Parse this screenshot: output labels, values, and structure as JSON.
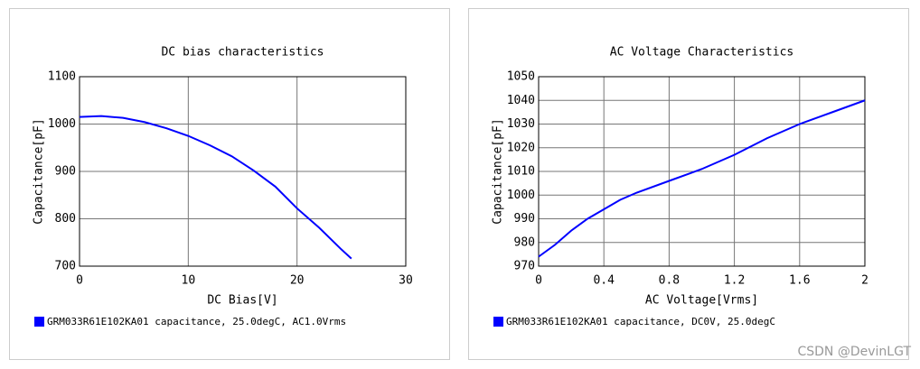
{
  "chart_data": [
    {
      "type": "line",
      "title": "DC bias characteristics",
      "x_label": "DC Bias[V]",
      "y_label": "Capacitance[pF]",
      "x": [
        0,
        2,
        4,
        6,
        8,
        10,
        12,
        14,
        16,
        18,
        20,
        22,
        24,
        25
      ],
      "series": [
        {
          "name": "GRM033R61E102KA01 capacitance, 25.0degC, AC1.0Vrms",
          "color": "#0000ff",
          "values": [
            1015,
            1017,
            1013,
            1004,
            991,
            975,
            955,
            932,
            902,
            868,
            822,
            782,
            737,
            716
          ]
        }
      ],
      "xlim": [
        0,
        30
      ],
      "xticks": [
        0,
        10,
        20,
        30
      ],
      "ylim": [
        700,
        1100
      ],
      "yticks": [
        700,
        800,
        900,
        1000,
        1100
      ],
      "grid": true
    },
    {
      "type": "line",
      "title": "AC Voltage Characteristics",
      "x_label": "AC Voltage[Vrms]",
      "y_label": "Capacitance[pF]",
      "x": [
        0,
        0.1,
        0.2,
        0.3,
        0.4,
        0.5,
        0.6,
        0.8,
        1.0,
        1.2,
        1.4,
        1.6,
        1.8,
        2.0
      ],
      "series": [
        {
          "name": "GRM033R61E102KA01 capacitance, DC0V, 25.0degC",
          "color": "#0000ff",
          "values": [
            974,
            979,
            985,
            990,
            994,
            998,
            1001,
            1006,
            1011,
            1017,
            1024,
            1030,
            1035,
            1040
          ]
        }
      ],
      "xlim": [
        0,
        2
      ],
      "xticks": [
        0,
        0.4,
        0.8,
        1.2,
        1.6,
        2
      ],
      "ylim": [
        970,
        1050
      ],
      "yticks": [
        970,
        980,
        990,
        1000,
        1010,
        1020,
        1030,
        1040,
        1050
      ],
      "grid": true
    }
  ],
  "watermark": "CSDN @DevinLGT"
}
